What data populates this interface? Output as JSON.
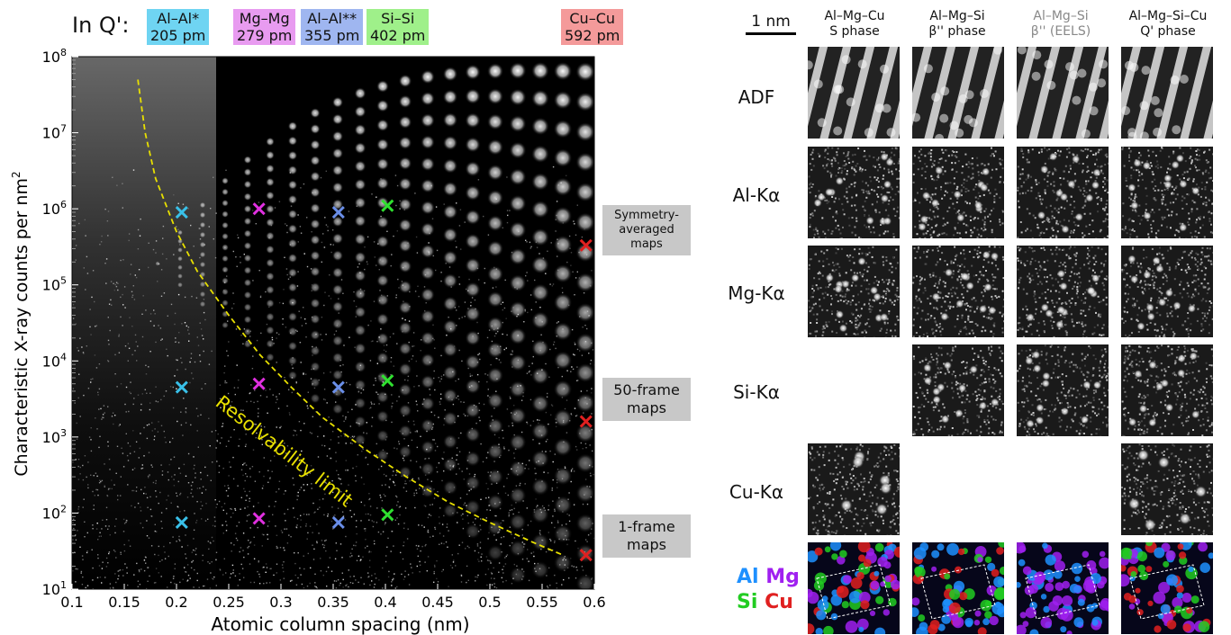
{
  "figure": {
    "in_q_label": "In Q':",
    "top_tags": [
      {
        "line1": "Al–Al*",
        "line2": "205 pm",
        "color": "#6fd4f2"
      },
      {
        "line1": "Mg–Mg",
        "line2": "279 pm",
        "color": "#e89bf0"
      },
      {
        "line1": "Al–Al**",
        "line2": "355 pm",
        "color": "#9fb6f0"
      },
      {
        "line1": "Si–Si",
        "line2": "402 pm",
        "color": "#9ff08a"
      },
      {
        "line1": "Cu–Cu",
        "line2": "592 pm",
        "color": "#f49a9a"
      }
    ],
    "side_labels": [
      {
        "line1": "Symmetry-",
        "line2": "averaged",
        "line3": "maps"
      },
      {
        "line1": "50-frame",
        "line2": "maps"
      },
      {
        "line1": "1-frame",
        "line2": "maps"
      }
    ],
    "resolvability_label": "Resolvability limit",
    "scale_bar_label": "1 nm",
    "columns": [
      {
        "line1": "Al–Mg–Cu",
        "line2": "S phase",
        "color": "#111111"
      },
      {
        "line1": "Al–Mg–Si",
        "line2": "β'' phase",
        "color": "#111111"
      },
      {
        "line1": "Al–Mg–Si",
        "line2": "β'' (EELS)",
        "color": "#888888"
      },
      {
        "line1": "Al–Mg–Si–Cu",
        "line2": "Q' phase",
        "color": "#111111"
      }
    ],
    "rows": [
      "ADF",
      "Al-Kα",
      "Mg-Kα",
      "Si-Kα",
      "Cu-Kα"
    ],
    "legend": {
      "al": "Al",
      "mg": "Mg",
      "si": "Si",
      "cu": "Cu",
      "al_color": "#1e90ff",
      "mg_color": "#a020f0",
      "si_color": "#22cc22",
      "cu_color": "#e02020"
    }
  },
  "chart_data": {
    "type": "scatter",
    "xlabel": "Atomic column spacing (nm)",
    "ylabel": "Characteristic X-ray counts per nm",
    "ylabel_sup": "2",
    "x_ticks": [
      "0.1",
      "0.15",
      "0.2",
      "0.25",
      "0.3",
      "0.35",
      "0.4",
      "0.45",
      "0.5",
      "0.55",
      "0.6"
    ],
    "y_tick_labels": [
      {
        "base": "10",
        "exp": "1"
      },
      {
        "base": "10",
        "exp": "2"
      },
      {
        "base": "10",
        "exp": "3"
      },
      {
        "base": "10",
        "exp": "4"
      },
      {
        "base": "10",
        "exp": "5"
      },
      {
        "base": "10",
        "exp": "6"
      },
      {
        "base": "10",
        "exp": "7"
      },
      {
        "base": "10",
        "exp": "8"
      }
    ],
    "xlim": [
      0.1,
      0.6
    ],
    "ylim_log10": [
      1,
      8
    ],
    "y_scale": "log",
    "series": [
      {
        "color": "#39c0e8",
        "points": [
          {
            "x": 0.205,
            "y": 900000
          },
          {
            "x": 0.205,
            "y": 4500
          },
          {
            "x": 0.205,
            "y": 75
          }
        ]
      },
      {
        "color": "#e030e0",
        "points": [
          {
            "x": 0.279,
            "y": 1000000
          },
          {
            "x": 0.279,
            "y": 5000
          },
          {
            "x": 0.279,
            "y": 85
          }
        ]
      },
      {
        "color": "#6a8ee8",
        "points": [
          {
            "x": 0.355,
            "y": 900000
          },
          {
            "x": 0.355,
            "y": 4500
          },
          {
            "x": 0.355,
            "y": 75
          }
        ]
      },
      {
        "color": "#30e030",
        "points": [
          {
            "x": 0.402,
            "y": 1100000
          },
          {
            "x": 0.402,
            "y": 5500
          },
          {
            "x": 0.402,
            "y": 95
          }
        ]
      },
      {
        "color": "#e02020",
        "points": [
          {
            "x": 0.592,
            "y": 330000
          },
          {
            "x": 0.592,
            "y": 1600
          },
          {
            "x": 0.592,
            "y": 28
          }
        ]
      }
    ],
    "limit_curve": {
      "color": "#e8e000",
      "points": [
        {
          "x": 0.163,
          "y": 50000000
        },
        {
          "x": 0.17,
          "y": 10000000
        },
        {
          "x": 0.18,
          "y": 2500000
        },
        {
          "x": 0.2,
          "y": 500000
        },
        {
          "x": 0.22,
          "y": 150000
        },
        {
          "x": 0.25,
          "y": 40000
        },
        {
          "x": 0.28,
          "y": 12000
        },
        {
          "x": 0.31,
          "y": 4500
        },
        {
          "x": 0.34,
          "y": 1800
        },
        {
          "x": 0.38,
          "y": 700
        },
        {
          "x": 0.42,
          "y": 300
        },
        {
          "x": 0.46,
          "y": 140
        },
        {
          "x": 0.5,
          "y": 75
        },
        {
          "x": 0.54,
          "y": 42
        },
        {
          "x": 0.57,
          "y": 28
        }
      ]
    }
  }
}
